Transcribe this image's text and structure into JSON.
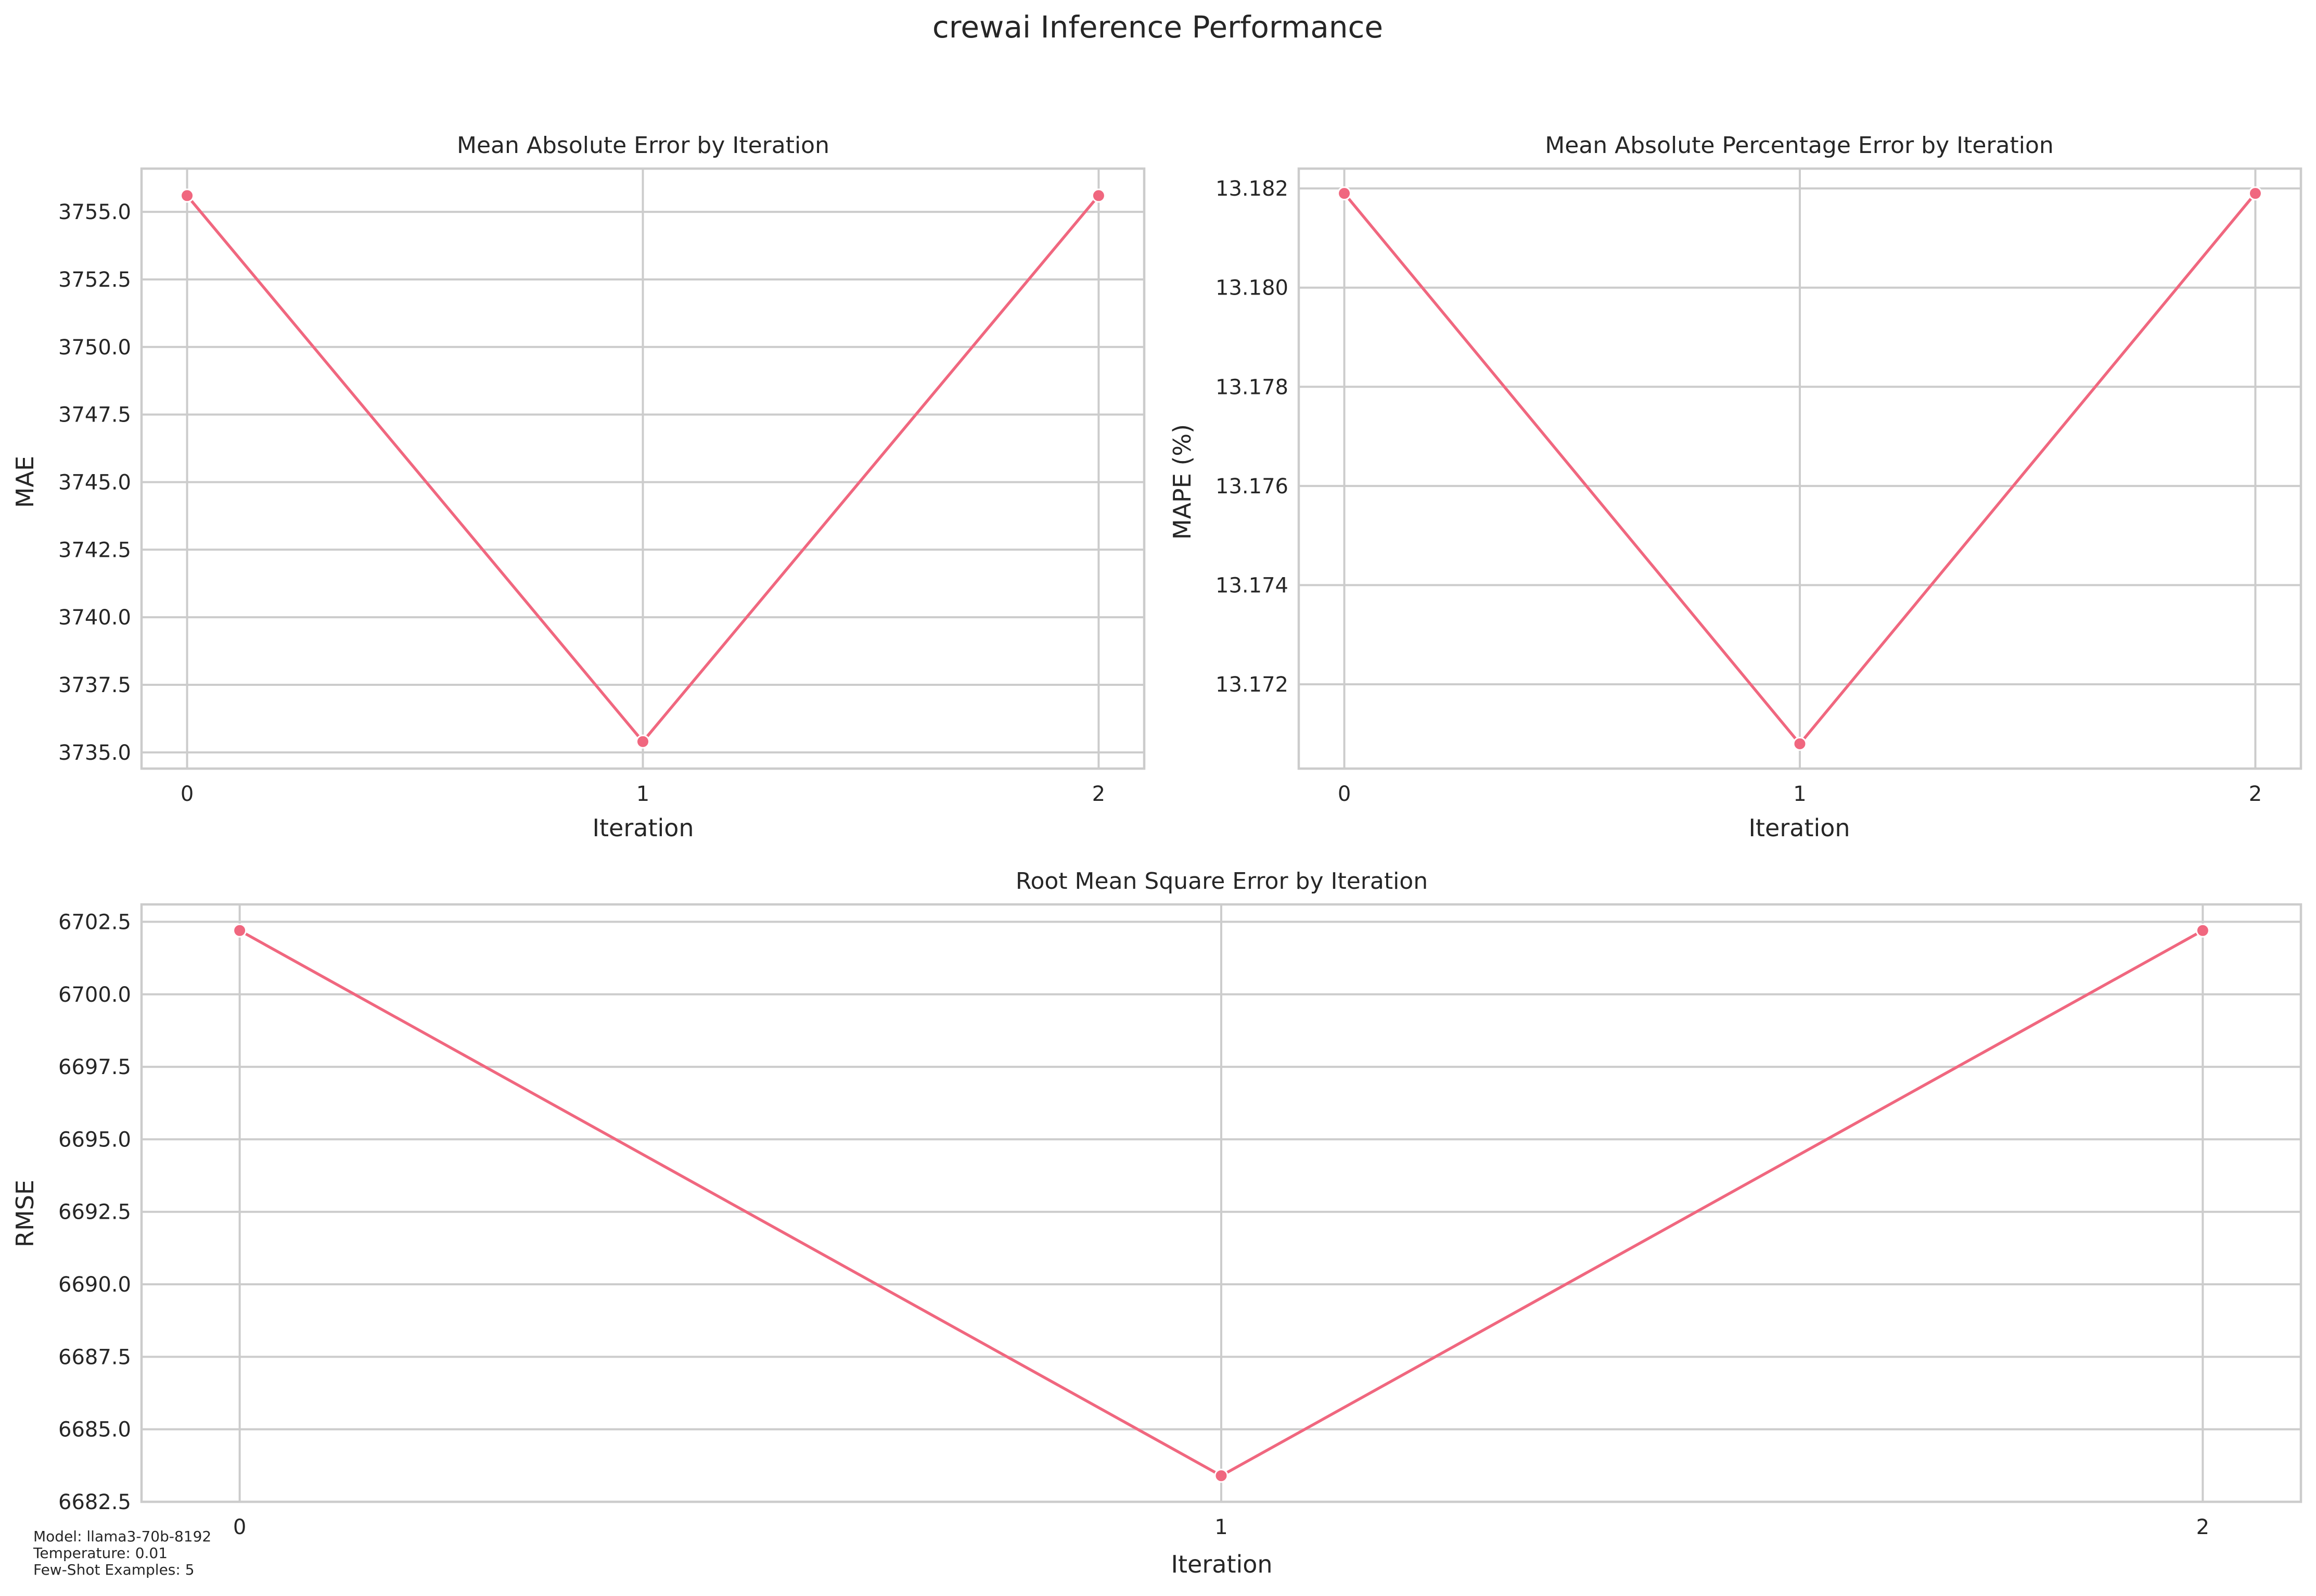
{
  "figure": {
    "suptitle": "crewai Inference Performance",
    "line_color": "#f0677f",
    "notes": [
      "Model: llama3-70b-8192",
      "Temperature: 0.01",
      "Few-Shot Examples: 5"
    ]
  },
  "chart_data": [
    {
      "type": "line",
      "title": "Mean Absolute Error by Iteration",
      "xlabel": "Iteration",
      "ylabel": "MAE",
      "x": [
        0,
        1,
        2
      ],
      "series": [
        {
          "values": [
            3755.6,
            3735.4,
            3755.6
          ]
        }
      ],
      "xticks": [
        "0",
        "1",
        "2"
      ],
      "yticks": [
        "3735.0",
        "3737.5",
        "3740.0",
        "3742.5",
        "3745.0",
        "3747.5",
        "3750.0",
        "3752.5",
        "3755.0"
      ],
      "xlim": [
        -0.1,
        2.1
      ],
      "ylim": [
        3734.4,
        3756.6
      ],
      "grid": true
    },
    {
      "type": "line",
      "title": "Mean Absolute Percentage Error by Iteration",
      "xlabel": "Iteration",
      "ylabel": "MAPE (%)",
      "x": [
        0,
        1,
        2
      ],
      "series": [
        {
          "values": [
            13.1819,
            13.1708,
            13.1819
          ]
        }
      ],
      "xticks": [
        "0",
        "1",
        "2"
      ],
      "yticks": [
        "13.172",
        "13.174",
        "13.176",
        "13.178",
        "13.180",
        "13.182"
      ],
      "xlim": [
        -0.1,
        2.1
      ],
      "ylim": [
        13.1703,
        13.1824
      ],
      "grid": true
    },
    {
      "type": "line",
      "title": "Root Mean Square Error by Iteration",
      "xlabel": "Iteration",
      "ylabel": "RMSE",
      "x": [
        0,
        1,
        2
      ],
      "series": [
        {
          "values": [
            6702.2,
            6683.4,
            6702.2
          ]
        }
      ],
      "xticks": [
        "0",
        "1",
        "2"
      ],
      "yticks": [
        "6682.5",
        "6685.0",
        "6687.5",
        "6690.0",
        "6692.5",
        "6695.0",
        "6697.5",
        "6700.0",
        "6702.5"
      ],
      "xlim": [
        -0.1,
        2.1
      ],
      "ylim": [
        6682.5,
        6703.1
      ],
      "grid": true
    }
  ]
}
